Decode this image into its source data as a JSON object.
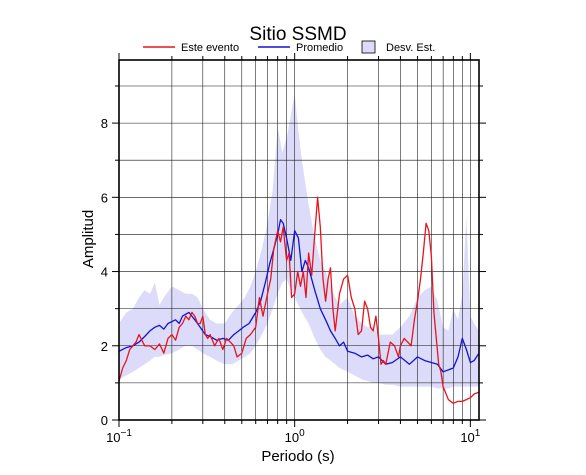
{
  "chart_data": {
    "type": "line",
    "title": "Sitio SSMD",
    "xlabel": "Periodo (s)",
    "ylabel": "Amplitud",
    "x_scale": "log",
    "xlim": [
      0.1,
      11.2
    ],
    "ylim": [
      0,
      9.7
    ],
    "x_ticks": [
      {
        "value": 0.1,
        "base": "10",
        "exp": "−1"
      },
      {
        "value": 1,
        "base": "10",
        "exp": "0"
      },
      {
        "value": 10,
        "base": "10",
        "exp": "1"
      }
    ],
    "y_ticks": [
      {
        "value": 0,
        "label": "0"
      },
      {
        "value": 2,
        "label": "2"
      },
      {
        "value": 4,
        "label": "4"
      },
      {
        "value": 6,
        "label": "6"
      },
      {
        "value": 8,
        "label": "8"
      }
    ],
    "grid": true,
    "legend_position": "top",
    "legend": [
      {
        "name": "Este evento",
        "kind": "line",
        "color": "#e8141c"
      },
      {
        "name": "Promedio",
        "kind": "line",
        "color": "#1212d8"
      },
      {
        "name": "Desv. Est.",
        "kind": "patch",
        "color": "#dcdcfa"
      }
    ],
    "series": [
      {
        "name": "Este evento",
        "color": "#e8141c",
        "x": [
          0.1,
          0.105,
          0.11,
          0.115,
          0.12,
          0.125,
          0.13,
          0.14,
          0.15,
          0.16,
          0.17,
          0.18,
          0.19,
          0.2,
          0.21,
          0.22,
          0.23,
          0.24,
          0.25,
          0.26,
          0.27,
          0.28,
          0.29,
          0.3,
          0.31,
          0.32,
          0.33,
          0.35,
          0.37,
          0.39,
          0.41,
          0.43,
          0.45,
          0.47,
          0.5,
          0.53,
          0.56,
          0.6,
          0.63,
          0.66,
          0.7,
          0.73,
          0.76,
          0.8,
          0.83,
          0.86,
          0.9,
          0.93,
          0.96,
          1.0,
          1.04,
          1.08,
          1.12,
          1.16,
          1.2,
          1.25,
          1.3,
          1.35,
          1.4,
          1.45,
          1.5,
          1.55,
          1.6,
          1.65,
          1.7,
          1.8,
          1.9,
          2.0,
          2.1,
          2.2,
          2.3,
          2.4,
          2.5,
          2.6,
          2.7,
          2.8,
          2.9,
          3.0,
          3.1,
          3.2,
          3.3,
          3.4,
          3.5,
          3.7,
          3.9,
          4.0,
          4.2,
          4.4,
          4.6,
          4.8,
          5.0,
          5.2,
          5.4,
          5.6,
          5.8,
          6.0,
          6.2,
          6.4,
          6.6,
          6.8,
          7.0,
          7.5,
          8.0,
          8.5,
          9.0,
          9.5,
          10.0,
          10.5,
          11.2
        ],
        "values": [
          1.05,
          1.4,
          1.6,
          1.9,
          2.0,
          2.1,
          2.3,
          2.0,
          2.0,
          1.9,
          2.05,
          1.8,
          2.2,
          2.3,
          2.15,
          2.5,
          2.6,
          2.8,
          2.7,
          2.9,
          2.8,
          2.6,
          2.6,
          2.8,
          2.3,
          2.2,
          2.3,
          2.0,
          2.2,
          1.9,
          2.2,
          2.1,
          2.0,
          1.7,
          1.8,
          2.2,
          2.3,
          2.5,
          3.3,
          2.8,
          3.4,
          3.8,
          4.6,
          5.1,
          4.8,
          5.2,
          4.3,
          4.5,
          3.3,
          3.4,
          4.0,
          3.6,
          4.0,
          3.3,
          4.5,
          3.9,
          5.0,
          6.0,
          5.2,
          3.8,
          3.2,
          3.8,
          4.1,
          3.0,
          2.4,
          3.4,
          3.8,
          3.9,
          3.3,
          3.0,
          2.3,
          2.4,
          3.2,
          3.0,
          2.5,
          2.4,
          2.8,
          2.2,
          1.5,
          1.6,
          1.5,
          1.8,
          2.1,
          2.0,
          1.7,
          2.0,
          2.2,
          2.1,
          2.0,
          2.7,
          3.2,
          3.8,
          4.5,
          5.3,
          5.1,
          4.4,
          2.9,
          2.2,
          1.5,
          1.3,
          0.9,
          0.55,
          0.45,
          0.5,
          0.5,
          0.55,
          0.6,
          0.7,
          0.75
        ]
      },
      {
        "name": "Promedio",
        "color": "#1212d8",
        "x": [
          0.1,
          0.11,
          0.12,
          0.13,
          0.14,
          0.15,
          0.16,
          0.17,
          0.18,
          0.19,
          0.2,
          0.21,
          0.22,
          0.23,
          0.25,
          0.27,
          0.29,
          0.31,
          0.33,
          0.36,
          0.39,
          0.42,
          0.45,
          0.48,
          0.51,
          0.55,
          0.6,
          0.64,
          0.68,
          0.72,
          0.76,
          0.8,
          0.83,
          0.86,
          0.9,
          0.95,
          1.0,
          1.05,
          1.1,
          1.15,
          1.2,
          1.3,
          1.4,
          1.5,
          1.6,
          1.7,
          1.8,
          1.9,
          2.0,
          2.2,
          2.4,
          2.6,
          2.8,
          3.0,
          3.3,
          3.6,
          4.0,
          4.5,
          5.0,
          5.5,
          6.0,
          6.5,
          7.0,
          7.5,
          8.0,
          8.5,
          9.0,
          9.5,
          10.0,
          10.5,
          11.2
        ],
        "values": [
          1.85,
          1.95,
          2.0,
          2.1,
          2.25,
          2.4,
          2.5,
          2.55,
          2.45,
          2.6,
          2.65,
          2.7,
          2.6,
          2.8,
          2.9,
          2.7,
          2.5,
          2.3,
          2.25,
          2.15,
          2.2,
          2.15,
          2.3,
          2.4,
          2.5,
          2.6,
          2.9,
          3.2,
          3.7,
          4.2,
          4.6,
          5.0,
          5.4,
          5.3,
          4.9,
          4.3,
          5.1,
          4.9,
          4.0,
          4.3,
          4.1,
          3.5,
          3.0,
          2.7,
          2.4,
          2.2,
          2.0,
          2.1,
          1.85,
          1.8,
          1.7,
          1.75,
          1.65,
          1.7,
          1.5,
          1.55,
          1.7,
          1.5,
          1.7,
          1.6,
          1.55,
          1.5,
          1.3,
          1.35,
          1.4,
          1.7,
          2.2,
          1.9,
          1.55,
          1.6,
          1.8
        ]
      }
    ],
    "band": {
      "name": "Desv. Est.",
      "color": "#dcdcfa",
      "x": [
        0.1,
        0.11,
        0.12,
        0.13,
        0.14,
        0.15,
        0.16,
        0.17,
        0.18,
        0.2,
        0.22,
        0.24,
        0.26,
        0.28,
        0.3,
        0.33,
        0.36,
        0.4,
        0.44,
        0.48,
        0.52,
        0.56,
        0.6,
        0.65,
        0.7,
        0.75,
        0.8,
        0.85,
        0.9,
        0.95,
        1.0,
        1.05,
        1.1,
        1.2,
        1.3,
        1.4,
        1.5,
        1.6,
        1.7,
        1.8,
        2.0,
        2.2,
        2.4,
        2.6,
        2.8,
        3.0,
        3.3,
        3.6,
        4.0,
        4.5,
        5.0,
        5.5,
        6.0,
        6.5,
        7.0,
        7.5,
        8.0,
        8.5,
        9.0,
        9.5,
        10.0,
        10.5,
        11.2
      ],
      "upper": [
        2.6,
        2.9,
        3.0,
        3.3,
        3.5,
        3.4,
        3.7,
        3.1,
        3.3,
        3.6,
        3.5,
        3.4,
        3.4,
        3.3,
        3.0,
        2.7,
        2.6,
        2.6,
        2.9,
        3.1,
        3.3,
        3.6,
        4.0,
        4.6,
        5.3,
        6.2,
        7.9,
        7.2,
        7.6,
        8.2,
        8.8,
        7.8,
        7.0,
        5.8,
        4.9,
        4.3,
        4.0,
        3.6,
        3.3,
        3.1,
        3.3,
        2.8,
        2.6,
        2.5,
        2.5,
        2.3,
        2.3,
        2.3,
        2.5,
        2.8,
        3.3,
        3.5,
        3.6,
        3.2,
        2.5,
        2.4,
        3.0,
        2.7,
        3.4,
        5.5,
        2.8,
        2.6,
        2.4
      ],
      "lower": [
        1.1,
        1.2,
        1.3,
        1.4,
        1.5,
        1.6,
        1.7,
        1.7,
        1.75,
        1.8,
        1.9,
        2.0,
        2.0,
        1.9,
        1.8,
        1.7,
        1.6,
        1.5,
        1.5,
        1.6,
        1.7,
        1.8,
        2.0,
        2.3,
        2.6,
        3.0,
        3.4,
        3.7,
        3.8,
        3.5,
        3.3,
        3.1,
        2.9,
        2.6,
        2.2,
        1.9,
        1.7,
        1.6,
        1.5,
        1.4,
        1.3,
        1.2,
        1.1,
        1.05,
        1.0,
        1.0,
        0.95,
        0.95,
        0.9,
        0.9,
        0.9,
        0.9,
        0.9,
        0.85,
        0.85,
        0.85,
        0.9,
        0.9,
        0.9,
        0.9,
        0.9,
        0.9,
        0.9
      ]
    }
  }
}
